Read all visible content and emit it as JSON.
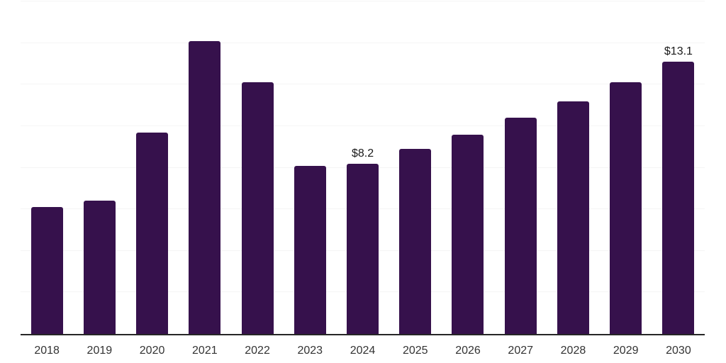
{
  "chart_data": {
    "type": "bar",
    "title": "",
    "xlabel": "",
    "ylabel": "",
    "categories": [
      "2018",
      "2019",
      "2020",
      "2021",
      "2022",
      "2023",
      "2024",
      "2025",
      "2026",
      "2027",
      "2028",
      "2029",
      "2030"
    ],
    "values": [
      6.1,
      6.4,
      9.7,
      14.1,
      12.1,
      8.1,
      8.2,
      8.9,
      9.6,
      10.4,
      11.2,
      12.1,
      13.1
    ],
    "data_labels": {
      "2024": "$8.2",
      "2030": "$13.1"
    },
    "value_prefix": "$",
    "ylim": [
      0,
      16
    ],
    "gridline_step": 2,
    "grid": "horizontal",
    "legend": "none",
    "colors": {
      "bar": "#36114C",
      "gridline": "#F5F5F5",
      "axis_line": "#262626",
      "tick_label": "#333333",
      "data_label": "#1A1A1A",
      "background": "#FFFFFF"
    }
  }
}
